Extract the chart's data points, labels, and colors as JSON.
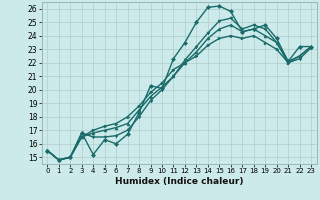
{
  "xlabel": "Humidex (Indice chaleur)",
  "background_color": "#cdeaea",
  "line_color": "#1a6b6b",
  "xlim": [
    -0.5,
    23.5
  ],
  "ylim": [
    14.5,
    26.5
  ],
  "xticks": [
    0,
    1,
    2,
    3,
    4,
    5,
    6,
    7,
    8,
    9,
    10,
    11,
    12,
    13,
    14,
    15,
    16,
    17,
    18,
    19,
    20,
    21,
    22,
    23
  ],
  "yticks": [
    15,
    16,
    17,
    18,
    19,
    20,
    21,
    22,
    23,
    24,
    25,
    26
  ],
  "series": [
    {
      "x": [
        0,
        1,
        2,
        3,
        4,
        5,
        6,
        7,
        8,
        9,
        10,
        11,
        12,
        13,
        14,
        15,
        16,
        17,
        18,
        19,
        20,
        21,
        22,
        23
      ],
      "y": [
        15.5,
        14.8,
        15.0,
        16.8,
        15.2,
        16.3,
        16.0,
        16.7,
        18.3,
        20.3,
        20.1,
        22.3,
        23.5,
        25.0,
        26.1,
        26.2,
        25.8,
        24.3,
        24.5,
        24.8,
        23.8,
        22.1,
        23.2,
        23.2
      ],
      "marker": "D",
      "ls": "-",
      "lw": 1.0
    },
    {
      "x": [
        0,
        1,
        2,
        3,
        4,
        5,
        6,
        7,
        8,
        9,
        10,
        11,
        12,
        13,
        14,
        15,
        16,
        17,
        18,
        19,
        20,
        21,
        22,
        23
      ],
      "y": [
        15.5,
        14.8,
        15.0,
        16.8,
        16.5,
        16.5,
        16.6,
        17.0,
        18.0,
        19.2,
        20.0,
        21.0,
        22.2,
        23.2,
        24.2,
        25.1,
        25.3,
        24.5,
        24.8,
        24.5,
        23.5,
        22.0,
        22.3,
        23.1
      ],
      "marker": "v",
      "ls": "-",
      "lw": 1.0
    },
    {
      "x": [
        0,
        1,
        2,
        3,
        4,
        5,
        6,
        7,
        8,
        9,
        10,
        11,
        12,
        13,
        14,
        15,
        16,
        17,
        18,
        19,
        20,
        21,
        22,
        23
      ],
      "y": [
        15.5,
        14.8,
        15.0,
        16.5,
        16.8,
        17.0,
        17.2,
        17.5,
        18.5,
        19.5,
        20.2,
        21.0,
        22.0,
        22.8,
        23.8,
        24.5,
        24.8,
        24.3,
        24.5,
        24.0,
        23.5,
        22.1,
        22.5,
        23.2
      ],
      "marker": "^",
      "ls": "-",
      "lw": 1.0
    },
    {
      "x": [
        0,
        1,
        2,
        3,
        4,
        5,
        6,
        7,
        8,
        9,
        10,
        11,
        12,
        13,
        14,
        15,
        16,
        17,
        18,
        19,
        20,
        21,
        22,
        23
      ],
      "y": [
        15.5,
        14.8,
        15.0,
        16.5,
        17.0,
        17.3,
        17.5,
        18.0,
        18.8,
        19.8,
        20.5,
        21.5,
        22.0,
        22.5,
        23.3,
        23.8,
        24.0,
        23.8,
        24.0,
        23.5,
        23.0,
        22.0,
        22.5,
        23.2
      ],
      "marker": ">",
      "ls": "-",
      "lw": 1.0
    }
  ]
}
